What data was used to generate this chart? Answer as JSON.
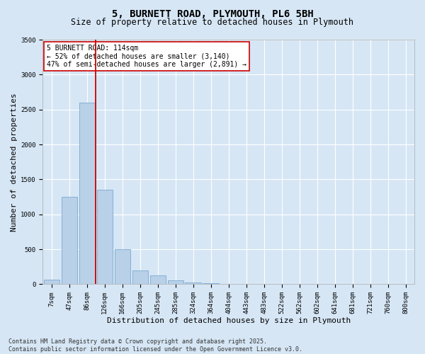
{
  "title1": "5, BURNETT ROAD, PLYMOUTH, PL6 5BH",
  "title2": "Size of property relative to detached houses in Plymouth",
  "xlabel": "Distribution of detached houses by size in Plymouth",
  "ylabel": "Number of detached properties",
  "categories": [
    "7sqm",
    "47sqm",
    "86sqm",
    "126sqm",
    "166sqm",
    "205sqm",
    "245sqm",
    "285sqm",
    "324sqm",
    "364sqm",
    "404sqm",
    "443sqm",
    "483sqm",
    "522sqm",
    "562sqm",
    "602sqm",
    "641sqm",
    "681sqm",
    "721sqm",
    "760sqm",
    "800sqm"
  ],
  "values": [
    60,
    1250,
    2600,
    1350,
    500,
    200,
    130,
    50,
    20,
    10,
    5,
    3,
    2,
    2,
    1,
    1,
    1,
    1,
    0,
    0,
    0
  ],
  "bar_color": "#b8d0e8",
  "bar_edge_color": "#7aaad0",
  "vline_color": "#cc0000",
  "annotation_text": "5 BURNETT ROAD: 114sqm\n← 52% of detached houses are smaller (3,140)\n47% of semi-detached houses are larger (2,891) →",
  "annotation_box_color": "#ffffff",
  "annotation_edge_color": "#cc0000",
  "background_color": "#d6e6f5",
  "plot_bg_color": "#d6e6f5",
  "footer_line1": "Contains HM Land Registry data © Crown copyright and database right 2025.",
  "footer_line2": "Contains public sector information licensed under the Open Government Licence v3.0.",
  "ylim": [
    0,
    3500
  ],
  "yticks": [
    0,
    500,
    1000,
    1500,
    2000,
    2500,
    3000,
    3500
  ],
  "grid_color": "#ffffff",
  "title_fontsize": 10,
  "subtitle_fontsize": 8.5,
  "tick_fontsize": 6.5,
  "label_fontsize": 8,
  "annotation_fontsize": 7,
  "footer_fontsize": 6
}
